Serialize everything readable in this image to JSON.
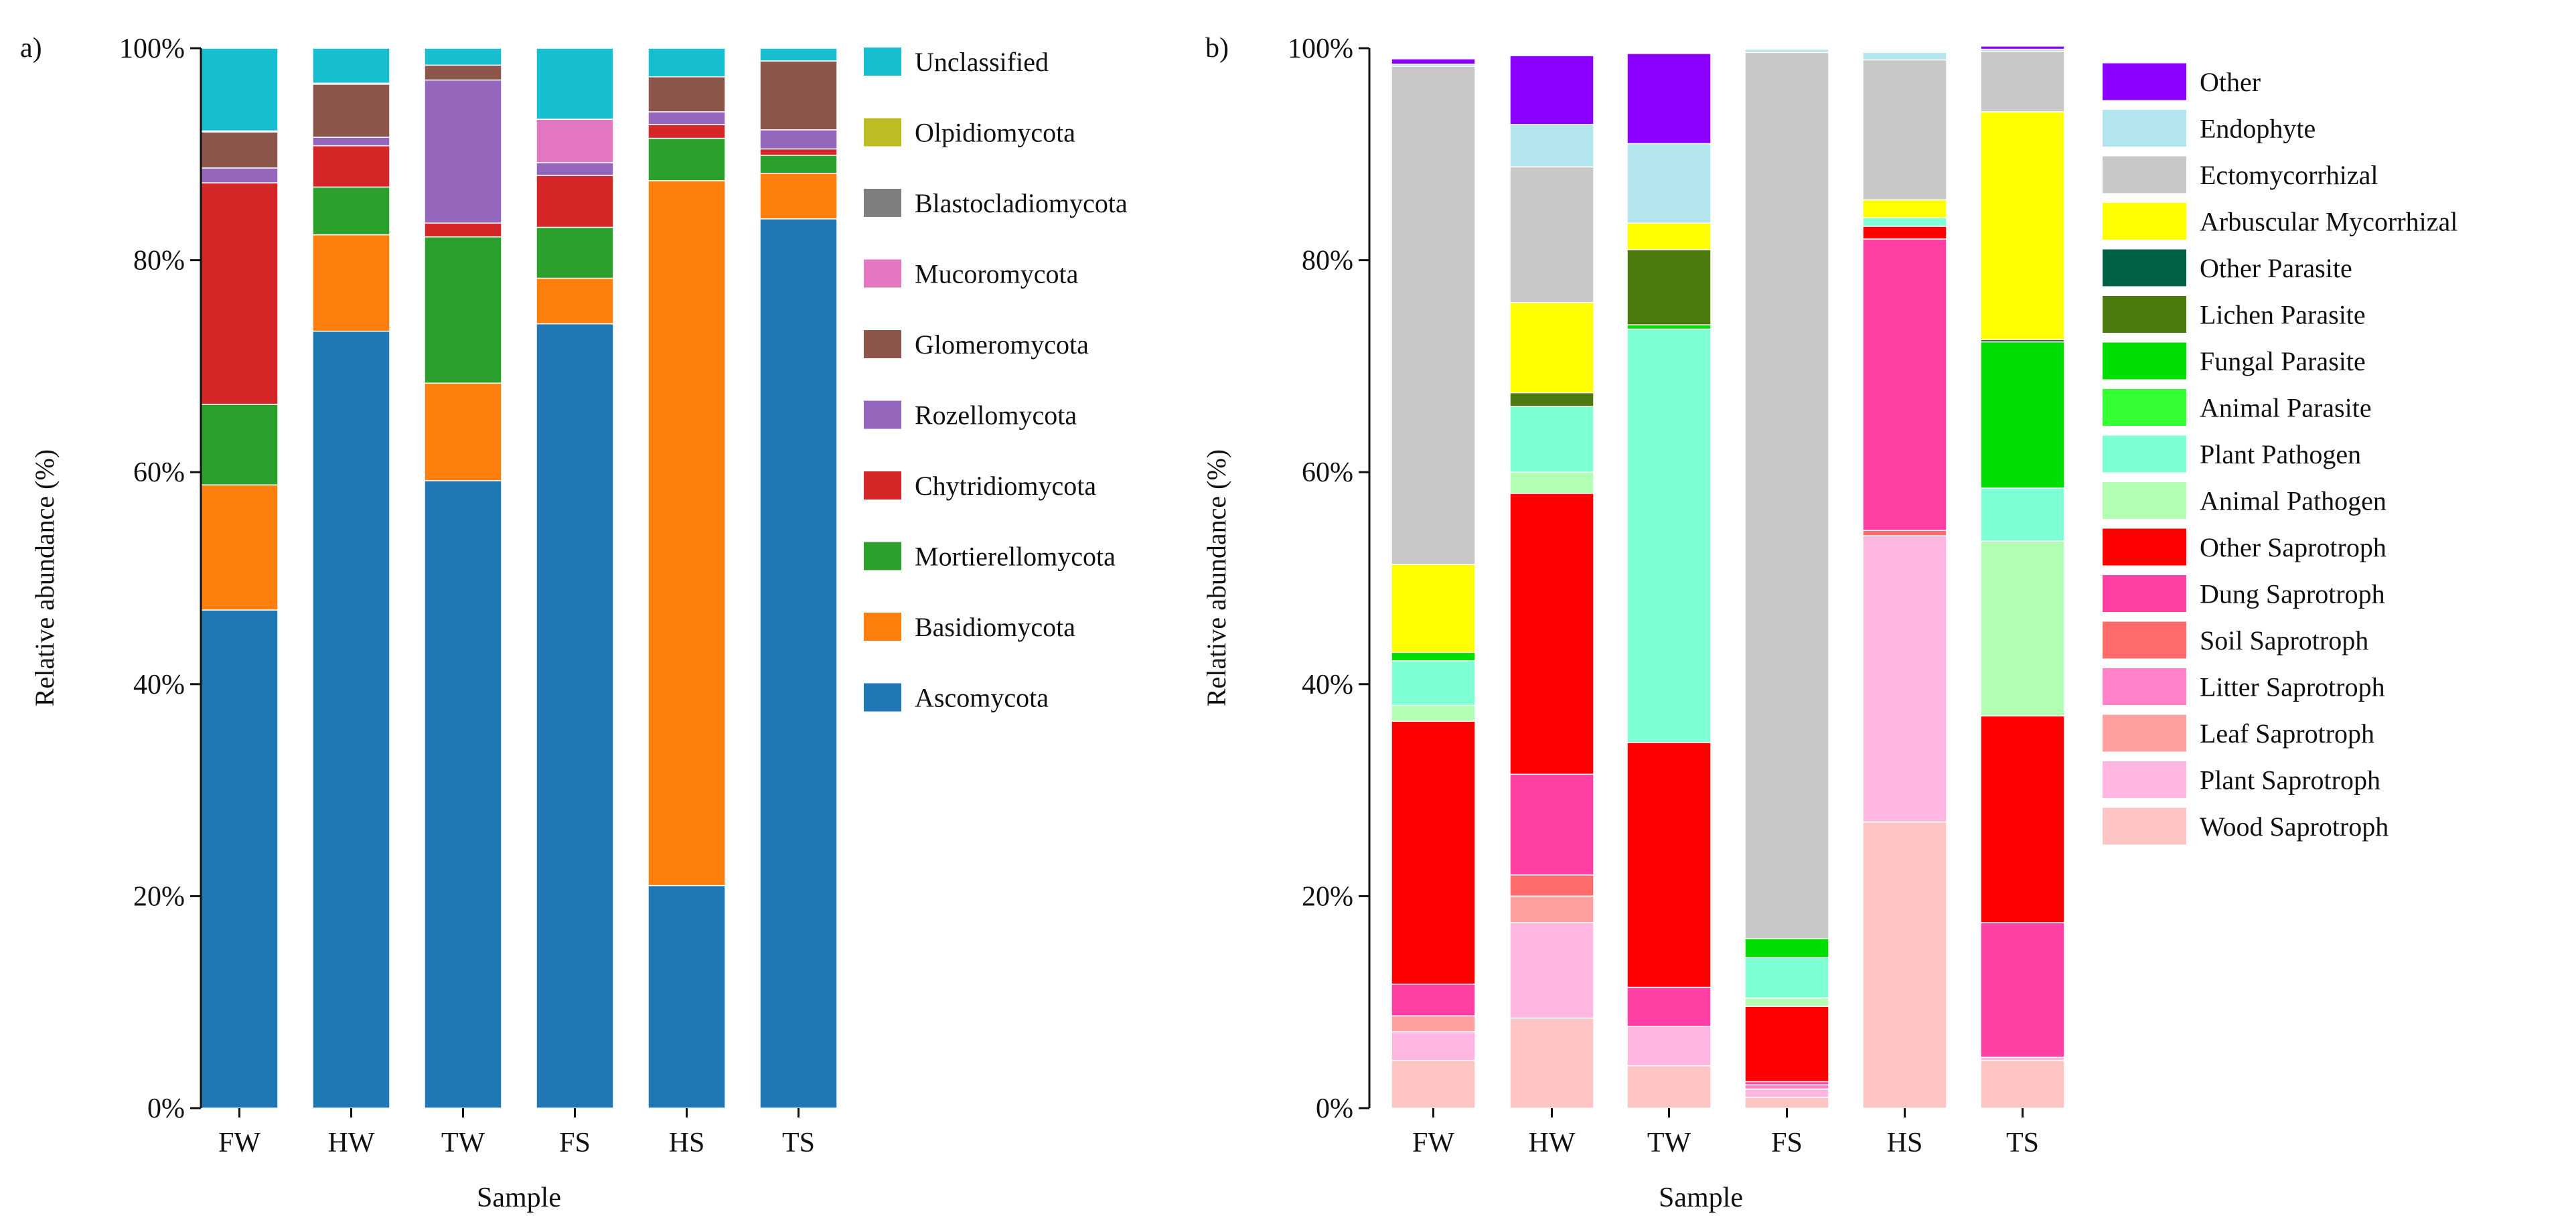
{
  "chart_data": [
    {
      "panel": "a)",
      "type": "bar",
      "stacked": true,
      "title": "",
      "xlabel": "Sample",
      "ylabel": "Relative abundance (%)",
      "ylim": [
        0,
        100
      ],
      "y_ticks": [
        "0%",
        "20%",
        "40%",
        "60%",
        "80%",
        "100%"
      ],
      "categories": [
        "FW",
        "HW",
        "TW",
        "FS",
        "HS",
        "TS"
      ],
      "legend_position": "right",
      "series": [
        {
          "name": "Ascomycota",
          "color": "#1f77b4",
          "values": [
            47.0,
            73.3,
            59.2,
            74.0,
            21.0,
            83.9
          ]
        },
        {
          "name": "Basidiomycota",
          "color": "#ff7f0e",
          "values": [
            11.8,
            9.1,
            9.2,
            4.3,
            66.5,
            4.3
          ]
        },
        {
          "name": "Mortierellomycota",
          "color": "#2ca02c",
          "values": [
            7.6,
            4.5,
            13.8,
            4.8,
            4.0,
            1.7
          ]
        },
        {
          "name": "Chytridiomycota",
          "color": "#d62728",
          "values": [
            20.9,
            3.9,
            1.3,
            4.9,
            1.3,
            0.6
          ]
        },
        {
          "name": "Rozellomycota",
          "color": "#9467bd",
          "values": [
            1.4,
            0.8,
            13.5,
            1.2,
            1.2,
            1.8
          ]
        },
        {
          "name": "Glomeromycota",
          "color": "#8c564b",
          "values": [
            3.4,
            5.0,
            1.4,
            0.0,
            3.3,
            6.5
          ]
        },
        {
          "name": "Mucoromycota",
          "color": "#e377c2",
          "values": [
            0.0,
            0.0,
            0.0,
            4.1,
            0.0,
            0.0
          ]
        },
        {
          "name": "Blastocladiomycota",
          "color": "#7f7f7f",
          "values": [
            0.1,
            0.1,
            0.0,
            0.0,
            0.0,
            0.0
          ]
        },
        {
          "name": "Olpidiomycota",
          "color": "#bcbd22",
          "values": [
            0.0,
            0.0,
            0.0,
            0.0,
            0.0,
            0.0
          ]
        },
        {
          "name": "Unclassified",
          "color": "#17becf",
          "values": [
            7.8,
            3.3,
            1.6,
            6.7,
            2.7,
            1.2
          ]
        }
      ]
    },
    {
      "panel": "b)",
      "type": "bar",
      "stacked": true,
      "title": "",
      "xlabel": "Sample",
      "ylabel": "Relative abundance (%)",
      "ylim": [
        0,
        100
      ],
      "y_ticks": [
        "0%",
        "20%",
        "40%",
        "60%",
        "80%",
        "100%"
      ],
      "categories": [
        "FW",
        "HW",
        "TW",
        "FS",
        "HS",
        "TS"
      ],
      "legend_position": "right",
      "series": [
        {
          "name": "Wood Saprotroph",
          "color": "#ffc4c4",
          "values": [
            4.5,
            8.5,
            4.0,
            1.0,
            27.0,
            4.5
          ]
        },
        {
          "name": "Plant Saprotroph",
          "color": "#ffb6e1",
          "values": [
            2.7,
            9.0,
            3.7,
            0.8,
            27.0,
            0.3
          ]
        },
        {
          "name": "Leaf Saprotroph",
          "color": "#ffa0a0",
          "values": [
            1.5,
            2.5,
            0.0,
            0.0,
            0.0,
            0.0
          ]
        },
        {
          "name": "Litter Saprotroph",
          "color": "#ff82c8",
          "values": [
            0.0,
            0.0,
            0.0,
            0.4,
            0.0,
            0.0
          ]
        },
        {
          "name": "Soil Saprotroph",
          "color": "#ff6b6b",
          "values": [
            0.0,
            2.0,
            0.0,
            0.0,
            0.5,
            0.0
          ]
        },
        {
          "name": "Dung Saprotroph",
          "color": "#ff3fa4",
          "values": [
            3.0,
            9.5,
            3.7,
            0.3,
            27.5,
            12.7
          ]
        },
        {
          "name": "Other Saprotroph",
          "color": "#ff0000",
          "values": [
            24.8,
            26.5,
            23.1,
            7.1,
            1.2,
            19.5
          ]
        },
        {
          "name": "Animal Pathogen",
          "color": "#b3ffb3",
          "values": [
            1.5,
            2.0,
            0.0,
            0.8,
            0.0,
            16.5
          ]
        },
        {
          "name": "Plant Pathogen",
          "color": "#7fffd4",
          "values": [
            4.2,
            6.2,
            39.0,
            3.8,
            0.8,
            5.0
          ]
        },
        {
          "name": "Animal Parasite",
          "color": "#33ff33",
          "values": [
            0.0,
            0.0,
            0.0,
            0.0,
            0.0,
            0.0
          ]
        },
        {
          "name": "Fungal Parasite",
          "color": "#00dd00",
          "values": [
            0.8,
            0.0,
            0.4,
            1.8,
            0.0,
            13.8
          ]
        },
        {
          "name": "Lichen Parasite",
          "color": "#4c7a0f",
          "values": [
            0.0,
            1.3,
            7.1,
            0.0,
            0.0,
            0.0
          ]
        },
        {
          "name": "Other Parasite",
          "color": "#006045",
          "values": [
            0.0,
            0.0,
            0.0,
            0.0,
            0.0,
            0.2
          ]
        },
        {
          "name": "Arbuscular Mycorrhizal",
          "color": "#ffff00",
          "values": [
            8.3,
            8.5,
            2.5,
            0.0,
            1.7,
            21.5
          ]
        },
        {
          "name": "Ectomycorrhizal",
          "color": "#c8c8c8",
          "values": [
            47.0,
            12.8,
            0.0,
            83.6,
            13.2,
            5.7
          ]
        },
        {
          "name": "Endophyte",
          "color": "#b3e5ee",
          "values": [
            0.2,
            4.0,
            7.5,
            0.3,
            0.7,
            0.2
          ]
        },
        {
          "name": "Other",
          "color": "#8b00ff",
          "values": [
            0.5,
            6.5,
            8.5,
            0.0,
            0.0,
            0.3
          ]
        }
      ]
    }
  ]
}
